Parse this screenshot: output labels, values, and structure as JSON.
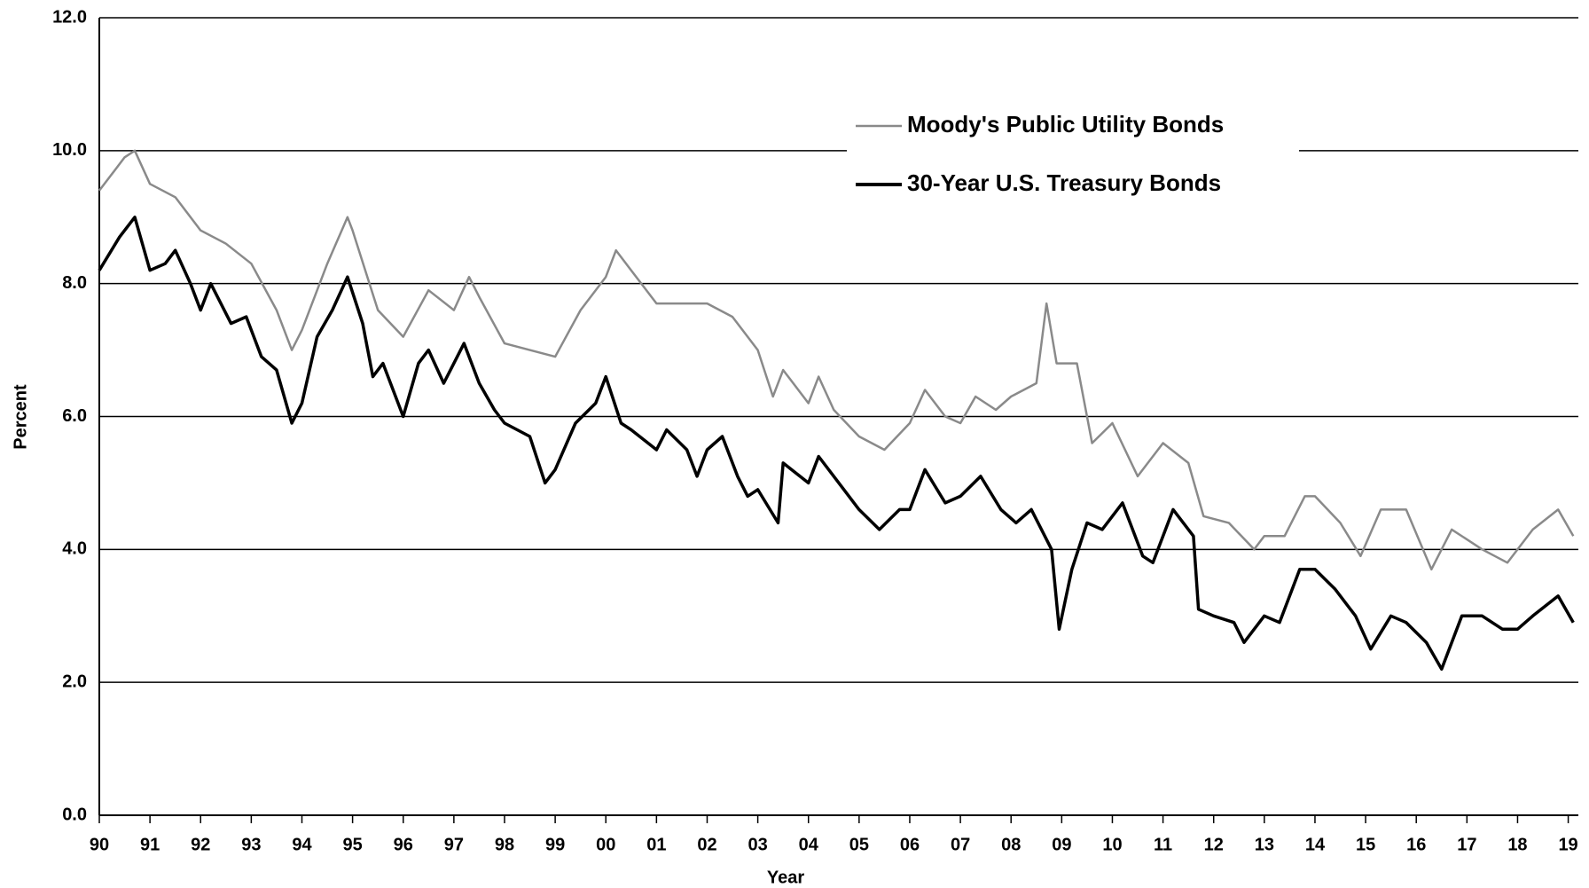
{
  "chart_data": {
    "type": "line",
    "x_label": "Year",
    "y_label": "Percent",
    "xlim": [
      1990,
      2019.2
    ],
    "ylim": [
      0,
      12
    ],
    "xticks": [
      {
        "value": 1990,
        "label": "90"
      },
      {
        "value": 1991,
        "label": "91"
      },
      {
        "value": 1992,
        "label": "92"
      },
      {
        "value": 1993,
        "label": "93"
      },
      {
        "value": 1994,
        "label": "94"
      },
      {
        "value": 1995,
        "label": "95"
      },
      {
        "value": 1996,
        "label": "96"
      },
      {
        "value": 1997,
        "label": "97"
      },
      {
        "value": 1998,
        "label": "98"
      },
      {
        "value": 1999,
        "label": "99"
      },
      {
        "value": 2000,
        "label": "00"
      },
      {
        "value": 2001,
        "label": "01"
      },
      {
        "value": 2002,
        "label": "02"
      },
      {
        "value": 2003,
        "label": "03"
      },
      {
        "value": 2004,
        "label": "04"
      },
      {
        "value": 2005,
        "label": "05"
      },
      {
        "value": 2006,
        "label": "06"
      },
      {
        "value": 2007,
        "label": "07"
      },
      {
        "value": 2008,
        "label": "08"
      },
      {
        "value": 2009,
        "label": "09"
      },
      {
        "value": 2010,
        "label": "10"
      },
      {
        "value": 2011,
        "label": "11"
      },
      {
        "value": 2012,
        "label": "12"
      },
      {
        "value": 2013,
        "label": "13"
      },
      {
        "value": 2014,
        "label": "14"
      },
      {
        "value": 2015,
        "label": "15"
      },
      {
        "value": 2016,
        "label": "16"
      },
      {
        "value": 2017,
        "label": "17"
      },
      {
        "value": 2018,
        "label": "18"
      },
      {
        "value": 2019,
        "label": "19"
      }
    ],
    "yticks": [
      {
        "value": 0,
        "label": "0.0"
      },
      {
        "value": 2,
        "label": "2.0"
      },
      {
        "value": 4,
        "label": "4.0"
      },
      {
        "value": 6,
        "label": "6.0"
      },
      {
        "value": 8,
        "label": "8.0"
      },
      {
        "value": 10,
        "label": "10.0"
      },
      {
        "value": 12,
        "label": "12.0"
      }
    ],
    "grid": true,
    "legend": "top-right",
    "series": [
      {
        "name": "Moody's Public Utility Bonds",
        "color": "#8a8a8a",
        "x": [
          1990,
          1990.5,
          1990.7,
          1991,
          1991.5,
          1992,
          1992.5,
          1993,
          1993.5,
          1993.8,
          1994,
          1994.5,
          1994.9,
          1995,
          1995.5,
          1996,
          1996.5,
          1997,
          1997.3,
          1997.5,
          1998,
          1998.5,
          1999,
          1999.5,
          2000,
          2000.2,
          2000.5,
          2001,
          2001.5,
          2002,
          2002.5,
          2003,
          2003.3,
          2003.5,
          2004,
          2004.2,
          2004.5,
          2005,
          2005.5,
          2006,
          2006.3,
          2006.7,
          2007,
          2007.3,
          2007.7,
          2008,
          2008.5,
          2008.7,
          2008.9,
          2009.3,
          2009.6,
          2010,
          2010.5,
          2011,
          2011.5,
          2011.8,
          2012.3,
          2012.8,
          2013,
          2013.4,
          2013.8,
          2014,
          2014.5,
          2014.9,
          2015.3,
          2015.8,
          2016.3,
          2016.7,
          2017.3,
          2017.8,
          2018.3,
          2018.8,
          2019.1
        ],
        "values": [
          9.4,
          9.9,
          10.0,
          9.5,
          9.3,
          8.8,
          8.6,
          8.3,
          7.6,
          7.0,
          7.3,
          8.3,
          9.0,
          8.8,
          7.6,
          7.2,
          7.9,
          7.6,
          8.1,
          7.8,
          7.1,
          7.0,
          6.9,
          7.6,
          8.1,
          8.5,
          8.2,
          7.7,
          7.7,
          7.7,
          7.5,
          7.0,
          6.3,
          6.7,
          6.2,
          6.6,
          6.1,
          5.7,
          5.5,
          5.9,
          6.4,
          6.0,
          5.9,
          6.3,
          6.1,
          6.3,
          6.5,
          7.7,
          6.8,
          6.8,
          5.6,
          5.9,
          5.1,
          5.6,
          5.3,
          4.5,
          4.4,
          4.0,
          4.2,
          4.2,
          4.8,
          4.8,
          4.4,
          3.9,
          4.6,
          4.6,
          3.7,
          4.3,
          4.0,
          3.8,
          4.3,
          4.6,
          4.2
        ]
      },
      {
        "name": "30-Year U.S. Treasury Bonds",
        "color": "#000000",
        "x": [
          1990,
          1990.4,
          1990.7,
          1991,
          1991.3,
          1991.5,
          1991.8,
          1992,
          1992.2,
          1992.6,
          1992.9,
          1993.2,
          1993.5,
          1993.8,
          1994,
          1994.3,
          1994.6,
          1994.9,
          1995.2,
          1995.4,
          1995.6,
          1996,
          1996.3,
          1996.5,
          1996.8,
          1997.2,
          1997.5,
          1997.8,
          1998,
          1998.5,
          1998.8,
          1999,
          1999.4,
          1999.8,
          2000,
          2000.3,
          2000.5,
          2001,
          2001.2,
          2001.6,
          2001.8,
          2002,
          2002.3,
          2002.6,
          2002.8,
          2003,
          2003.4,
          2003.5,
          2004,
          2004.2,
          2004.5,
          2005,
          2005.4,
          2005.8,
          2006,
          2006.3,
          2006.7,
          2007,
          2007.4,
          2007.8,
          2008.1,
          2008.4,
          2008.8,
          2008.95,
          2009.2,
          2009.5,
          2009.8,
          2010.2,
          2010.6,
          2010.8,
          2011.2,
          2011.6,
          2011.7,
          2012,
          2012.4,
          2012.6,
          2013,
          2013.3,
          2013.7,
          2014,
          2014.4,
          2014.8,
          2015.1,
          2015.5,
          2015.8,
          2016.2,
          2016.5,
          2016.9,
          2017.3,
          2017.7,
          2018,
          2018.3,
          2018.8,
          2019.1
        ],
        "values": [
          8.2,
          8.7,
          9.0,
          8.2,
          8.3,
          8.5,
          8.0,
          7.6,
          8.0,
          7.4,
          7.5,
          6.9,
          6.7,
          5.9,
          6.2,
          7.2,
          7.6,
          8.1,
          7.4,
          6.6,
          6.8,
          6.0,
          6.8,
          7.0,
          6.5,
          7.1,
          6.5,
          6.1,
          5.9,
          5.7,
          5.0,
          5.2,
          5.9,
          6.2,
          6.6,
          5.9,
          5.8,
          5.5,
          5.8,
          5.5,
          5.1,
          5.5,
          5.7,
          5.1,
          4.8,
          4.9,
          4.4,
          5.3,
          5.0,
          5.4,
          5.1,
          4.6,
          4.3,
          4.6,
          4.6,
          5.2,
          4.7,
          4.8,
          5.1,
          4.6,
          4.4,
          4.6,
          4.0,
          2.8,
          3.7,
          4.4,
          4.3,
          4.7,
          3.9,
          3.8,
          4.6,
          4.2,
          3.1,
          3.0,
          2.9,
          2.6,
          3.0,
          2.9,
          3.7,
          3.7,
          3.4,
          3.0,
          2.5,
          3.0,
          2.9,
          2.6,
          2.2,
          3.0,
          3.0,
          2.8,
          2.8,
          3.0,
          3.3,
          2.9
        ]
      }
    ]
  }
}
